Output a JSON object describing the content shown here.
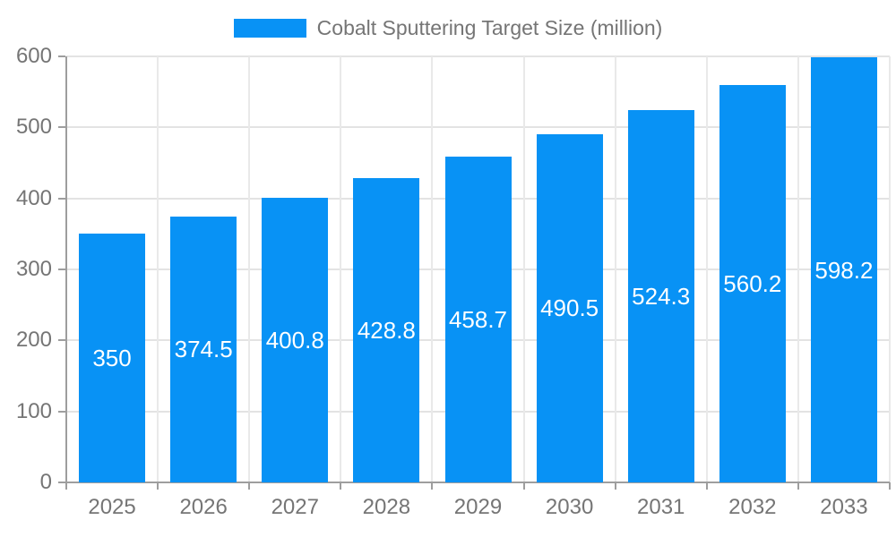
{
  "chart_data": {
    "type": "bar",
    "title": "Cobalt Sputtering Target Size (million)",
    "legend_label": "Cobalt Sputtering Target Size (million)",
    "legend_position": "top-center",
    "categories": [
      "2025",
      "2026",
      "2027",
      "2028",
      "2029",
      "2030",
      "2031",
      "2032",
      "2033"
    ],
    "series": [
      {
        "name": "Cobalt Sputtering Target Size (million)",
        "values": [
          350,
          374.5,
          400.8,
          428.8,
          458.7,
          490.5,
          524.3,
          560.2,
          598.2
        ]
      }
    ],
    "value_labels": [
      "350",
      "374.5",
      "400.8",
      "428.8",
      "458.7",
      "490.5",
      "524.3",
      "560.2",
      "598.2"
    ],
    "xlabel": "",
    "ylabel": "",
    "ylim": [
      0,
      600
    ],
    "yticks": [
      0,
      100,
      200,
      300,
      400,
      500,
      600
    ],
    "grid": true,
    "colors": {
      "bar": "#0892f5",
      "bar_label": "#ffffff",
      "axis_line": "#9e9e9e",
      "grid_line_h": "#e3e3e3",
      "grid_line_v": "#e9e9e9",
      "tick_text": "#757575",
      "legend_text": "#757575",
      "background": "#ffffff"
    }
  }
}
